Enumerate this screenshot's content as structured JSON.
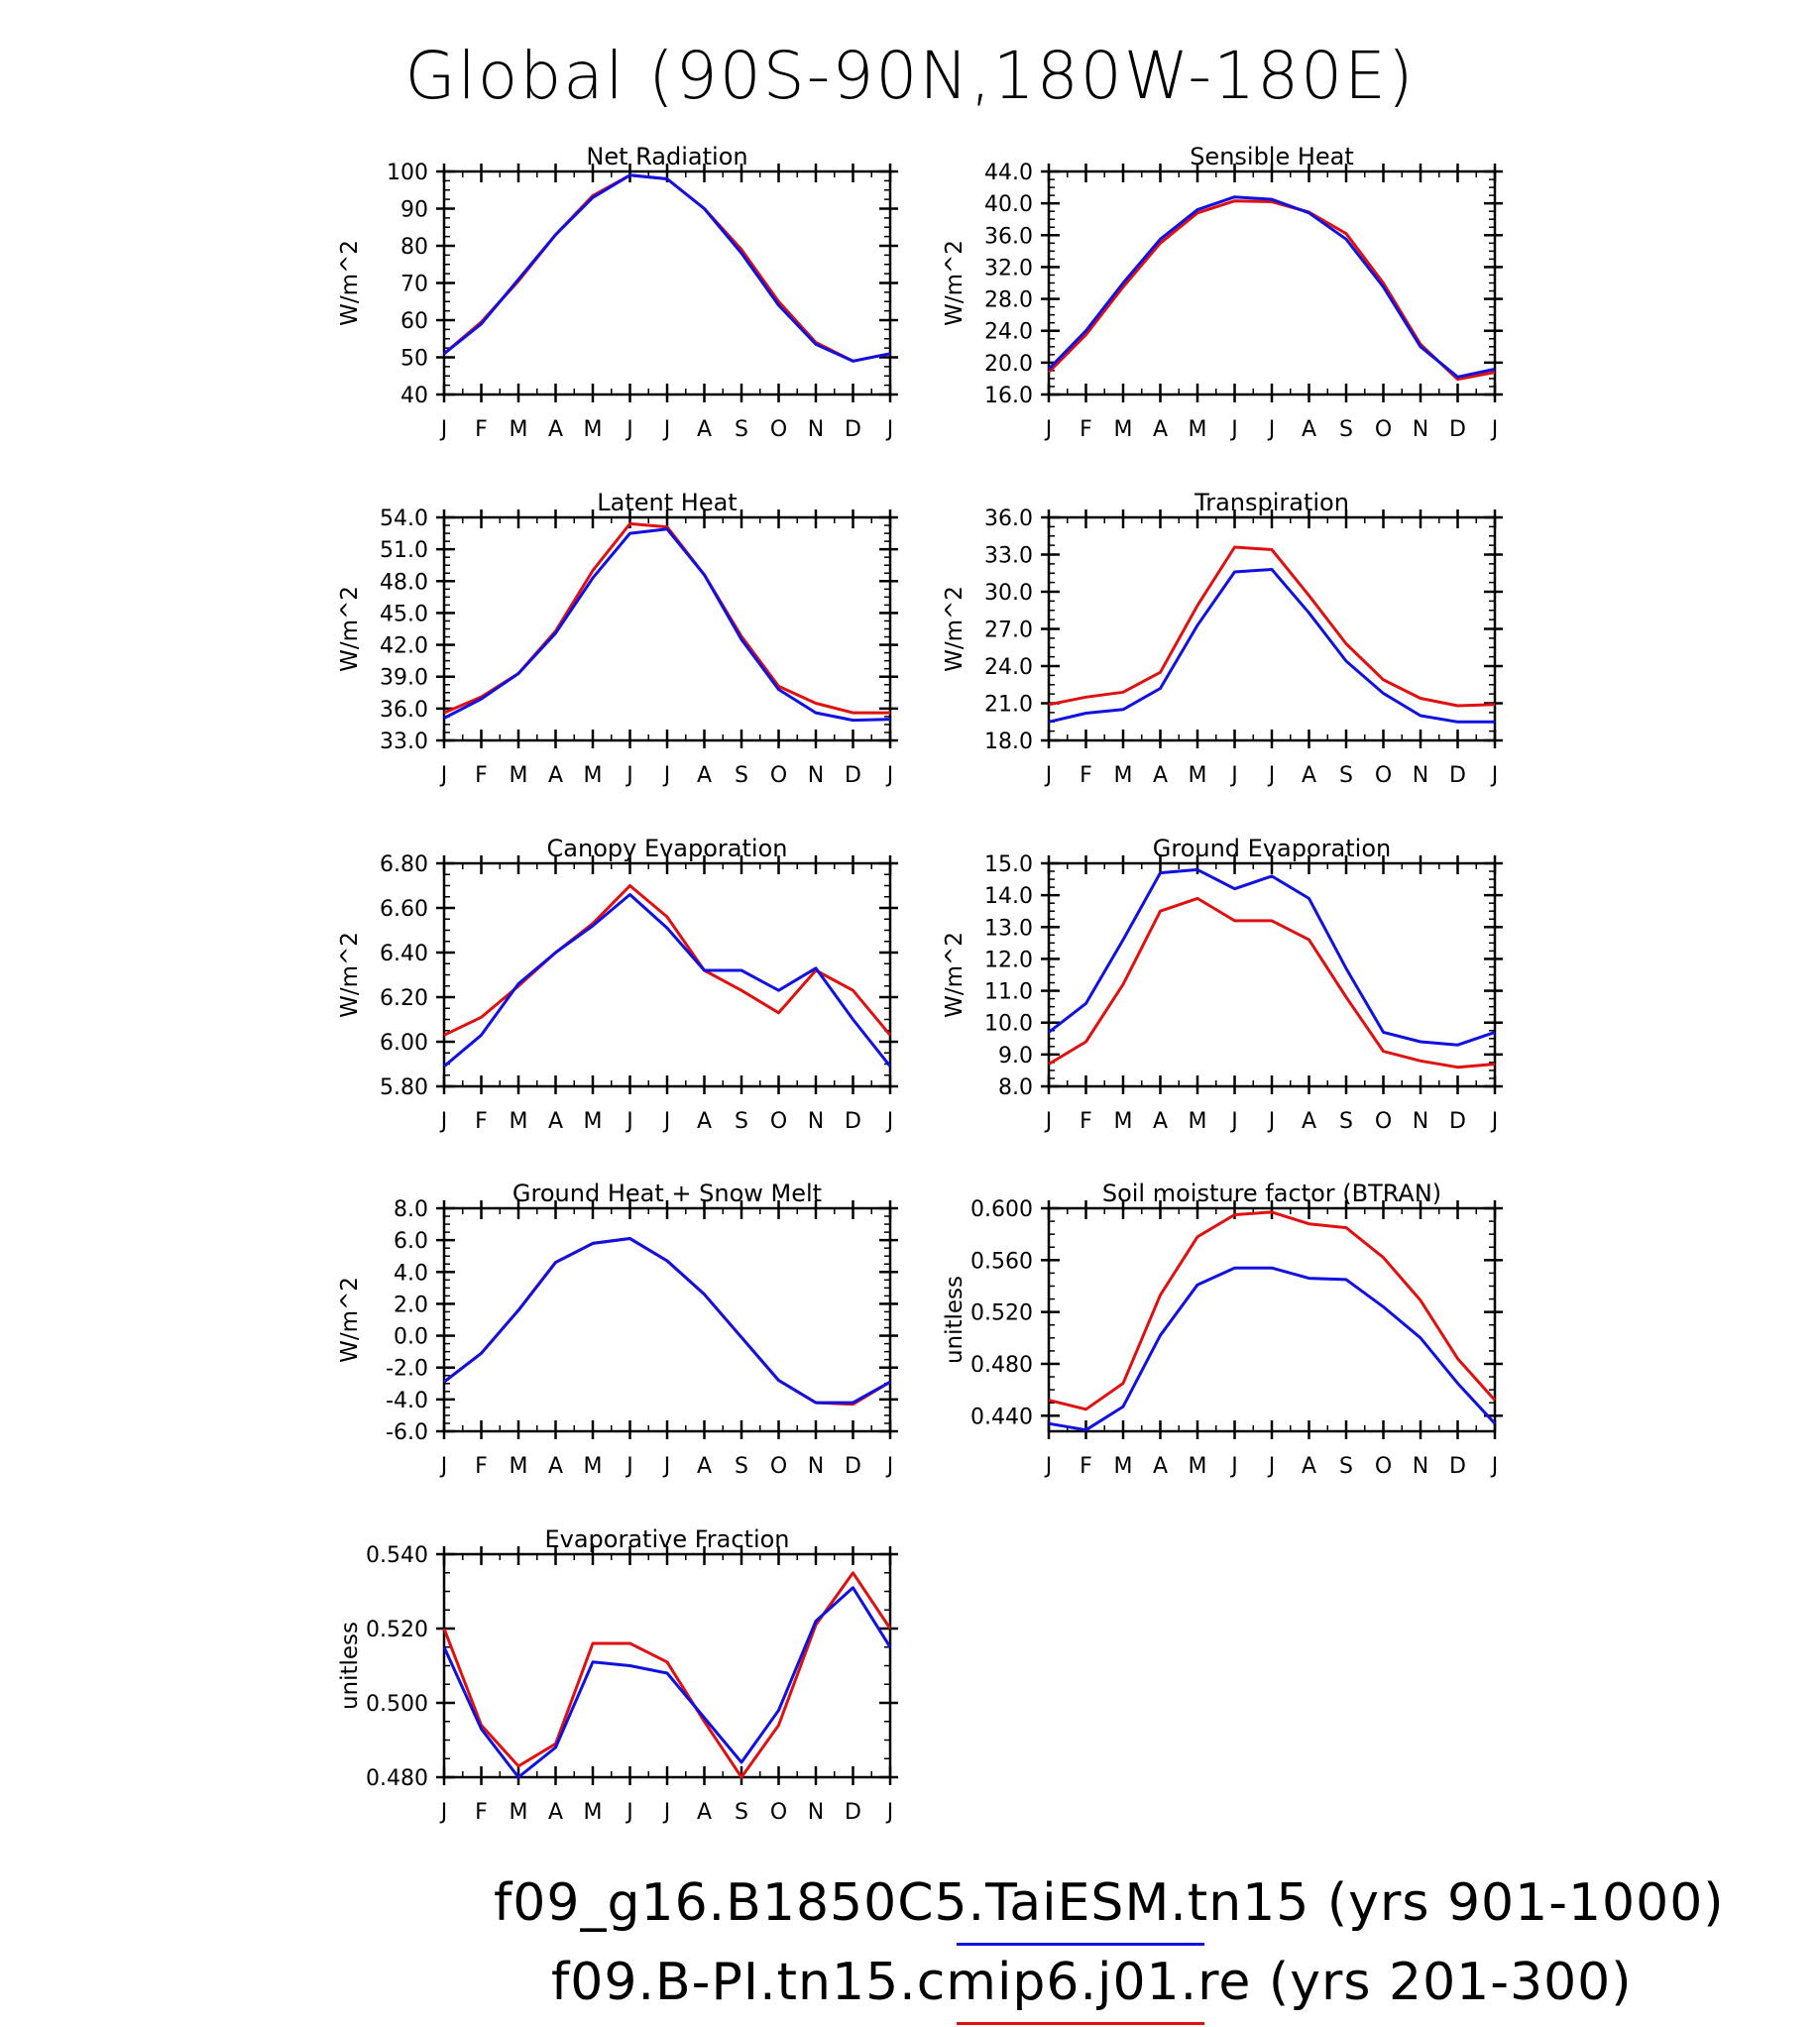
{
  "title": "Global (90S-90N,180W-180E)",
  "colors": {
    "series1": "#1010e0",
    "series2": "#e01010",
    "axis": "#000000"
  },
  "months": [
    "J",
    "F",
    "M",
    "A",
    "M",
    "J",
    "J",
    "A",
    "S",
    "O",
    "N",
    "D",
    "J"
  ],
  "legend": [
    {
      "label": "f09_g16.B1850C5.TaiESM.tn15 (yrs 901-1000)",
      "color": "#1010e0"
    },
    {
      "label": "f09.B-PI.tn15.cmip6.j01.re (yrs 201-300)",
      "color": "#e01010"
    }
  ],
  "chart_data": [
    {
      "type": "line",
      "title": "Net Radiation",
      "ylabel": "W/m^2",
      "ylim": [
        40,
        100
      ],
      "yticks": [
        "40",
        "50",
        "60",
        "70",
        "80",
        "90",
        "100"
      ],
      "x": [
        "J",
        "F",
        "M",
        "A",
        "M",
        "J",
        "J",
        "A",
        "S",
        "O",
        "N",
        "D",
        "J"
      ],
      "series": [
        {
          "values": [
            51,
            59,
            71,
            83,
            93,
            99,
            98,
            90,
            78,
            64,
            53.5,
            49,
            51
          ]
        },
        {
          "values": [
            51,
            59.5,
            70.5,
            83,
            93.5,
            99,
            98,
            90,
            79,
            65,
            54,
            49,
            51
          ]
        }
      ]
    },
    {
      "type": "line",
      "title": "Sensible Heat",
      "ylabel": "W/m^2",
      "ylim": [
        16,
        44
      ],
      "yticks": [
        "16.0",
        "20.0",
        "24.0",
        "28.0",
        "32.0",
        "36.0",
        "40.0",
        "44.0"
      ],
      "x": [
        "J",
        "F",
        "M",
        "A",
        "M",
        "J",
        "J",
        "A",
        "S",
        "O",
        "N",
        "D",
        "J"
      ],
      "series": [
        {
          "values": [
            19.2,
            24,
            30,
            35.5,
            39.2,
            40.8,
            40.5,
            38.8,
            35.5,
            29.5,
            22,
            18.2,
            19.2
          ]
        },
        {
          "values": [
            18.8,
            23.5,
            29.5,
            35,
            38.8,
            40.3,
            40.2,
            38.9,
            36.2,
            30,
            22.3,
            17.9,
            18.8
          ]
        }
      ]
    },
    {
      "type": "line",
      "title": "Latent Heat",
      "ylabel": "W/m^2",
      "ylim": [
        33,
        54
      ],
      "yticks": [
        "33.0",
        "36.0",
        "39.0",
        "42.0",
        "45.0",
        "48.0",
        "51.0",
        "54.0"
      ],
      "x": [
        "J",
        "F",
        "M",
        "A",
        "M",
        "J",
        "J",
        "A",
        "S",
        "O",
        "N",
        "D",
        "J"
      ],
      "series": [
        {
          "values": [
            35.1,
            36.9,
            39.3,
            43.1,
            48.3,
            52.5,
            52.9,
            48.6,
            42.5,
            37.8,
            35.6,
            34.9,
            35
          ]
        },
        {
          "values": [
            35.6,
            37.1,
            39.3,
            43.3,
            49,
            53.4,
            53.1,
            48.6,
            42.8,
            38.1,
            36.5,
            35.6,
            35.6
          ]
        }
      ]
    },
    {
      "type": "line",
      "title": "Transpiration",
      "ylabel": "W/m^2",
      "ylim": [
        18,
        36
      ],
      "yticks": [
        "18.0",
        "21.0",
        "24.0",
        "27.0",
        "30.0",
        "33.0",
        "36.0"
      ],
      "x": [
        "J",
        "F",
        "M",
        "A",
        "M",
        "J",
        "J",
        "A",
        "S",
        "O",
        "N",
        "D",
        "J"
      ],
      "series": [
        {
          "values": [
            19.5,
            20.2,
            20.5,
            22.2,
            27.3,
            31.6,
            31.8,
            28.3,
            24.4,
            21.8,
            20,
            19.5,
            19.5
          ]
        },
        {
          "values": [
            20.9,
            21.5,
            21.9,
            23.5,
            28.9,
            33.6,
            33.4,
            29.7,
            25.8,
            22.9,
            21.4,
            20.8,
            20.9
          ]
        }
      ]
    },
    {
      "type": "line",
      "title": "Canopy Evaporation",
      "ylabel": "W/m^2",
      "ylim": [
        5.8,
        6.8
      ],
      "yticks": [
        "5.80",
        "6.00",
        "6.20",
        "6.40",
        "6.60",
        "6.80"
      ],
      "x": [
        "J",
        "F",
        "M",
        "A",
        "M",
        "J",
        "J",
        "A",
        "S",
        "O",
        "N",
        "D",
        "J"
      ],
      "series": [
        {
          "values": [
            5.89,
            6.03,
            6.26,
            6.4,
            6.52,
            6.66,
            6.51,
            6.32,
            6.32,
            6.23,
            6.33,
            6.1,
            5.89
          ]
        },
        {
          "values": [
            6.03,
            6.11,
            6.25,
            6.4,
            6.53,
            6.7,
            6.56,
            6.32,
            6.23,
            6.13,
            6.32,
            6.23,
            6.03
          ]
        }
      ]
    },
    {
      "type": "line",
      "title": "Ground Evaporation",
      "ylabel": "W/m^2",
      "ylim": [
        8,
        15
      ],
      "yticks": [
        "8.0",
        "9.0",
        "10.0",
        "11.0",
        "12.0",
        "13.0",
        "14.0",
        "15.0"
      ],
      "x": [
        "J",
        "F",
        "M",
        "A",
        "M",
        "J",
        "J",
        "A",
        "S",
        "O",
        "N",
        "D",
        "J"
      ],
      "series": [
        {
          "values": [
            9.7,
            10.6,
            12.6,
            14.7,
            14.8,
            14.2,
            14.6,
            13.9,
            11.7,
            9.7,
            9.4,
            9.3,
            9.7
          ]
        },
        {
          "values": [
            8.7,
            9.4,
            11.2,
            13.5,
            13.9,
            13.2,
            13.2,
            12.6,
            10.8,
            9.1,
            8.8,
            8.6,
            8.7
          ]
        }
      ]
    },
    {
      "type": "line",
      "title": "Ground Heat + Snow Melt",
      "ylabel": "W/m^2",
      "ylim": [
        -6,
        8
      ],
      "yticks": [
        "-6.0",
        "-4.0",
        "-2.0",
        "0.0",
        "2.0",
        "4.0",
        "6.0",
        "8.0"
      ],
      "x": [
        "J",
        "F",
        "M",
        "A",
        "M",
        "J",
        "J",
        "A",
        "S",
        "O",
        "N",
        "D",
        "J"
      ],
      "series": [
        {
          "values": [
            -2.9,
            -1.1,
            1.6,
            4.6,
            5.8,
            6.1,
            4.7,
            2.6,
            -0.1,
            -2.8,
            -4.2,
            -4.2,
            -2.9
          ]
        },
        {
          "values": [
            -2.9,
            -1.1,
            1.6,
            4.6,
            5.8,
            6.1,
            4.7,
            2.6,
            -0.1,
            -2.8,
            -4.2,
            -4.3,
            -2.9
          ]
        }
      ]
    },
    {
      "type": "line",
      "title": "Soil moisture factor (BTRAN)",
      "ylabel": "unitless",
      "ylim": [
        0.428,
        0.6
      ],
      "yticks": [
        "0.440",
        "0.480",
        "0.520",
        "0.560",
        "0.600"
      ],
      "x": [
        "J",
        "F",
        "M",
        "A",
        "M",
        "J",
        "J",
        "A",
        "S",
        "O",
        "N",
        "D",
        "J"
      ],
      "series": [
        {
          "values": [
            0.434,
            0.429,
            0.447,
            0.502,
            0.541,
            0.554,
            0.554,
            0.546,
            0.545,
            0.524,
            0.5,
            0.465,
            0.434
          ]
        },
        {
          "values": [
            0.452,
            0.445,
            0.465,
            0.533,
            0.578,
            0.595,
            0.597,
            0.588,
            0.585,
            0.562,
            0.529,
            0.484,
            0.452
          ]
        }
      ]
    },
    {
      "type": "line",
      "title": "Evaporative Fraction",
      "ylabel": "unitless",
      "ylim": [
        0.48,
        0.54
      ],
      "yticks": [
        "0.480",
        "0.500",
        "0.520",
        "0.540"
      ],
      "x": [
        "J",
        "F",
        "M",
        "A",
        "M",
        "J",
        "J",
        "A",
        "S",
        "O",
        "N",
        "D",
        "J"
      ],
      "series": [
        {
          "values": [
            0.515,
            0.493,
            0.48,
            0.488,
            0.511,
            0.51,
            0.508,
            0.496,
            0.484,
            0.498,
            0.522,
            0.531,
            0.515
          ]
        },
        {
          "values": [
            0.52,
            0.494,
            0.483,
            0.489,
            0.516,
            0.516,
            0.511,
            0.495,
            0.48,
            0.494,
            0.521,
            0.535,
            0.52
          ]
        }
      ]
    }
  ]
}
